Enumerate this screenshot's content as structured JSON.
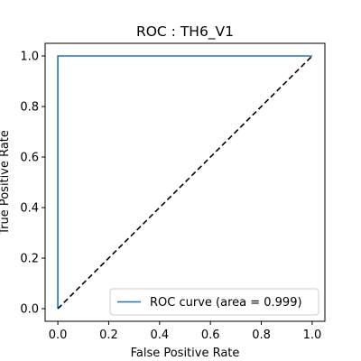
{
  "chart_data": {
    "type": "line",
    "title": "ROC : TH6_V1",
    "xlabel": "False Positive Rate",
    "ylabel": "True Positive Rate",
    "xlim": [
      -0.05,
      1.05
    ],
    "ylim": [
      -0.05,
      1.05
    ],
    "xticks": [
      "0.0",
      "0.2",
      "0.4",
      "0.6",
      "0.8",
      "1.0"
    ],
    "yticks": [
      "0.0",
      "0.2",
      "0.4",
      "0.6",
      "0.8",
      "1.0"
    ],
    "grid": false,
    "legend_position": "lower-right",
    "series": [
      {
        "name": "ROC curve (area = 0.999)",
        "color": "#1f77b4",
        "style": "solid",
        "x": [
          0.0,
          0.0,
          0.0,
          1.0
        ],
        "y": [
          0.0,
          0.99,
          1.0,
          1.0
        ]
      },
      {
        "color": "#000000",
        "style": "dashed",
        "x": [
          0.0,
          1.0
        ],
        "y": [
          0.0,
          1.0
        ]
      }
    ]
  }
}
